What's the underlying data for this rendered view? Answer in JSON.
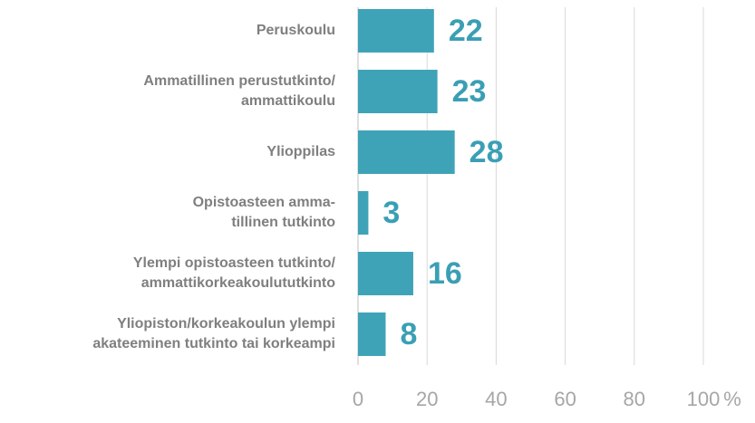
{
  "chart_data": {
    "type": "barh",
    "categories": [
      [
        "Peruskoulu"
      ],
      [
        "Ammatillinen perustutkinto/",
        "ammattikoulu"
      ],
      [
        "Ylioppilas"
      ],
      [
        "Opistoasteen amma-",
        "tillinen tutkinto"
      ],
      [
        "Ylempi opistoasteen tutkinto/",
        "ammattikorkeakoulututkinto"
      ],
      [
        "Yliopiston/korkeakoulun ylempi",
        "akateeminen tutkinto tai korkeampi"
      ]
    ],
    "values": [
      22,
      23,
      28,
      3,
      16,
      8
    ],
    "color": "#3fa3b8",
    "xlim": [
      0,
      100
    ],
    "xticks": [
      0,
      20,
      40,
      60,
      80,
      100
    ],
    "x_unit": "%",
    "grid": true
  }
}
